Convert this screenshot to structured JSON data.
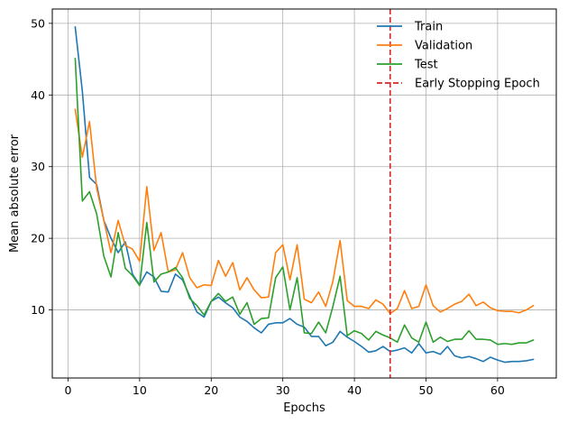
{
  "chart_data": {
    "type": "line",
    "xlabel": "Epochs",
    "ylabel": "Mean absolute error",
    "xlim": [
      -2.2,
      68.2
    ],
    "ylim": [
      0.5,
      52
    ],
    "xticks": [
      0,
      10,
      20,
      30,
      40,
      50,
      60
    ],
    "yticks": [
      10,
      20,
      30,
      40,
      50
    ],
    "grid": true,
    "legend_position": "top-right",
    "x": [
      1,
      2,
      3,
      4,
      5,
      6,
      7,
      8,
      9,
      10,
      11,
      12,
      13,
      14,
      15,
      16,
      17,
      18,
      19,
      20,
      21,
      22,
      23,
      24,
      25,
      26,
      27,
      28,
      29,
      30,
      31,
      32,
      33,
      34,
      35,
      36,
      37,
      38,
      39,
      40,
      41,
      42,
      43,
      44,
      45,
      46,
      47,
      48,
      49,
      50,
      51,
      52,
      53,
      54,
      55,
      56,
      57,
      58,
      59,
      60,
      61,
      62,
      63,
      64,
      65
    ],
    "series": [
      {
        "name": "Train",
        "color": "#1f77b4",
        "values": [
          49.5,
          40.5,
          28.5,
          27.5,
          22.5,
          20.0,
          18.0,
          19.5,
          15.0,
          13.5,
          15.3,
          14.6,
          12.6,
          12.5,
          15.0,
          14.2,
          11.9,
          9.7,
          9.0,
          11.2,
          11.8,
          11.0,
          10.3,
          9.0,
          8.4,
          7.5,
          6.8,
          8.0,
          8.2,
          8.2,
          8.8,
          8.0,
          7.6,
          6.3,
          6.3,
          5.0,
          5.5,
          7.0,
          6.2,
          5.6,
          4.9,
          4.1,
          4.3,
          4.9,
          4.2,
          4.4,
          4.7,
          4.0,
          5.3,
          4.0,
          4.2,
          3.8,
          4.9,
          3.6,
          3.3,
          3.5,
          3.2,
          2.8,
          3.4,
          3.0,
          2.7,
          2.8,
          2.8,
          2.9,
          3.1
        ]
      },
      {
        "name": "Validation",
        "color": "#ff7f0e",
        "values": [
          38.0,
          31.3,
          36.3,
          27.0,
          22.5,
          18.0,
          22.5,
          19.0,
          18.5,
          16.8,
          27.2,
          18.3,
          20.8,
          15.3,
          15.6,
          18.0,
          14.5,
          13.1,
          13.5,
          13.4,
          16.9,
          14.7,
          16.6,
          12.8,
          14.5,
          12.8,
          11.7,
          11.8,
          18.0,
          19.1,
          14.2,
          19.1,
          11.5,
          11.0,
          12.5,
          10.5,
          14.0,
          19.7,
          11.3,
          10.5,
          10.5,
          10.2,
          11.4,
          10.8,
          9.5,
          10.2,
          12.7,
          10.2,
          10.5,
          13.5,
          10.6,
          9.7,
          10.2,
          10.8,
          11.2,
          12.2,
          10.6,
          11.1,
          10.3,
          9.9,
          9.8,
          9.8,
          9.6,
          10.0,
          10.6
        ]
      },
      {
        "name": "Test",
        "color": "#2ca02c",
        "values": [
          45.1,
          25.2,
          26.5,
          23.4,
          17.5,
          14.6,
          20.8,
          15.8,
          14.8,
          13.4,
          22.2,
          13.9,
          15.0,
          15.3,
          15.9,
          14.5,
          11.6,
          10.6,
          9.3,
          11.2,
          12.3,
          11.2,
          11.8,
          9.4,
          11.0,
          8.0,
          8.8,
          8.9,
          14.5,
          16.0,
          10.0,
          14.5,
          6.8,
          6.7,
          8.3,
          6.8,
          10.5,
          14.7,
          6.4,
          7.1,
          6.7,
          5.8,
          7.0,
          6.5,
          6.1,
          5.5,
          7.9,
          6.1,
          5.5,
          8.3,
          5.5,
          6.2,
          5.6,
          5.9,
          5.9,
          7.1,
          5.9,
          5.9,
          5.8,
          5.2,
          5.3,
          5.2,
          5.4,
          5.4,
          5.8
        ]
      }
    ],
    "vline": {
      "name": "Early Stopping Epoch",
      "x": 45,
      "color": "#d62728",
      "style": "dashed"
    }
  }
}
